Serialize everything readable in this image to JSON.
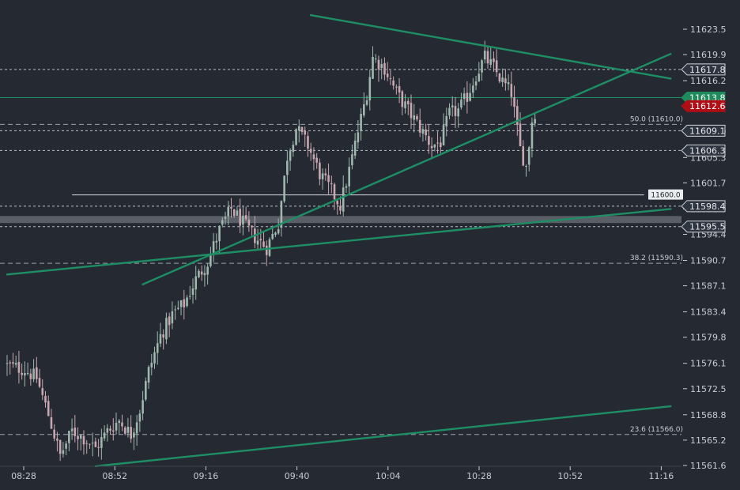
{
  "colors": {
    "background": "#252a32",
    "up_candle": "#9fb7ad",
    "down_candle": "#c9a7b0",
    "trendline": "#1e8f65",
    "dashed_level": "#b9bec7",
    "hline": "#c2c6cc",
    "zone": "#6b7079",
    "axis_text": "#c8ccd2",
    "label_box": "#2f3540",
    "green_label": "#1f8a5b",
    "red_label": "#b00d14"
  },
  "chart_data": {
    "type": "candlestick",
    "x_ticks": [
      "08:28",
      "08:52",
      "09:16",
      "09:40",
      "10:04",
      "10:28",
      "10:52",
      "11:16"
    ],
    "y_ticks": [
      11623.5,
      11619.9,
      11616.2,
      11612.6,
      11609.0,
      11605.3,
      11601.7,
      11598.0,
      11594.4,
      11590.7,
      11587.1,
      11583.4,
      11579.8,
      11576.1,
      11572.5,
      11568.8,
      11565.2,
      11561.6
    ],
    "y_tick_labels": [
      "11623.5",
      "11619.9",
      "11616.2",
      "11612.6",
      "11609.0",
      "11605.3",
      "11601.7",
      "11598.0",
      "11594.4",
      "11590.7",
      "11587.1",
      "11583.4",
      "11579.8",
      "11576.1",
      "11572.5",
      "11568.8",
      "11565.2",
      "11561.6"
    ],
    "ylim": [
      11560.6,
      11626.8
    ],
    "bars_shown": 180,
    "close_path": [
      [
        0,
        11575.8
      ],
      [
        6,
        11575.2
      ],
      [
        10,
        11574.0
      ],
      [
        14,
        11568.8
      ],
      [
        18,
        11563.0
      ],
      [
        22,
        11566.5
      ],
      [
        26,
        11565.5
      ],
      [
        30,
        11564.0
      ],
      [
        34,
        11566.5
      ],
      [
        38,
        11568.0
      ],
      [
        42,
        11566.0
      ],
      [
        45,
        11569.5
      ],
      [
        48,
        11575.0
      ],
      [
        52,
        11580.0
      ],
      [
        56,
        11583.0
      ],
      [
        60,
        11584.5
      ],
      [
        64,
        11588.0
      ],
      [
        68,
        11590.5
      ],
      [
        72,
        11595.0
      ],
      [
        76,
        11598.0
      ],
      [
        80,
        11596.0
      ],
      [
        84,
        11594.0
      ],
      [
        88,
        11592.5
      ],
      [
        92,
        11596.0
      ],
      [
        95,
        11605.5
      ],
      [
        98,
        11609.5
      ],
      [
        102,
        11607.0
      ],
      [
        106,
        11603.0
      ],
      [
        110,
        11600.5
      ],
      [
        113,
        11598.5
      ],
      [
        116,
        11603.5
      ],
      [
        119,
        11609.0
      ],
      [
        122,
        11614.5
      ],
      [
        124,
        11619.5
      ],
      [
        128,
        11618.0
      ],
      [
        132,
        11614.5
      ],
      [
        136,
        11612.0
      ],
      [
        140,
        11609.5
      ],
      [
        144,
        11607.0
      ],
      [
        147,
        11607.5
      ],
      [
        150,
        11611.5
      ],
      [
        153,
        11612.0
      ],
      [
        156,
        11614.0
      ],
      [
        159,
        11617.0
      ],
      [
        162,
        11619.5
      ],
      [
        165,
        11618.0
      ],
      [
        168,
        11616.0
      ],
      [
        171,
        11614.5
      ],
      [
        174,
        11606.5
      ],
      [
        176,
        11604.0
      ],
      [
        178,
        11610.5
      ],
      [
        179,
        11611.8
      ]
    ],
    "trendlines": [
      {
        "x": [
          0,
          225
        ],
        "y": [
          11588.7,
          11598.0
        ]
      },
      {
        "x": [
          46,
          225
        ],
        "y": [
          11587.3,
          11620.0
        ]
      },
      {
        "x": [
          30,
          225
        ],
        "y": [
          11561.5,
          11570.0
        ]
      },
      {
        "x": [
          103,
          225
        ],
        "y": [
          11625.5,
          11616.5
        ]
      }
    ],
    "horizontal_levels": [
      {
        "price": 11617.8,
        "label": "11617.8",
        "style": "dashed"
      },
      {
        "price": 11613.8,
        "label": "11613.8",
        "style": "solid-green"
      },
      {
        "price": 11609.1,
        "label": "11609.1",
        "style": "dashed"
      },
      {
        "price": 11606.3,
        "label": "11606.3",
        "style": "dashed"
      },
      {
        "price": 11598.4,
        "label": "11598.4",
        "style": "dashed"
      },
      {
        "price": 11595.5,
        "label": "11595.5",
        "style": "dashed"
      }
    ],
    "current_price": {
      "price": 11612.6,
      "label": "11612.6"
    },
    "level_line": {
      "price": 11600.0,
      "label": "11600.0",
      "x_start": 22,
      "x_end": 216
    },
    "zone": {
      "y": [
        11596.0,
        11597.0
      ]
    },
    "fib_levels": [
      {
        "price": 11610.0,
        "label": "50.0 (11610.0)"
      },
      {
        "price": 11590.3,
        "label": "38.2 (11590.3)"
      },
      {
        "price": 11566.0,
        "label": "23.6 (11566.0)"
      }
    ]
  }
}
